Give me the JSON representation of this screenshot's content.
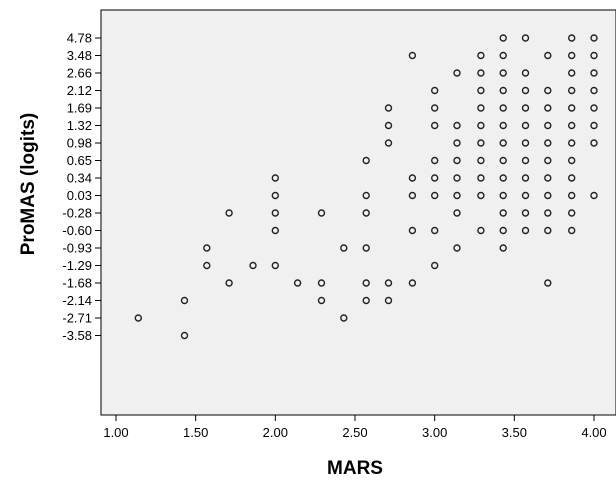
{
  "chart_data": {
    "type": "scatter",
    "xlabel": "MARS",
    "ylabel": "ProMAS (logits)",
    "x_ticks": [
      "1.00",
      "1.50",
      "2.00",
      "2.50",
      "3.00",
      "3.50",
      "4.00"
    ],
    "xlim": [
      0.9,
      4.02
    ],
    "y_tick_labels": [
      "4.78",
      "3.48",
      "2.66",
      "2.12",
      "1.69",
      "1.32",
      "0.98",
      "0.65",
      "0.34",
      "0.03",
      "-0.28",
      "-0.60",
      "-0.93",
      "-1.29",
      "-1.68",
      "-2.14",
      "-2.71",
      "-3.58"
    ],
    "y_scale": "ordinal (one row per listed logit value)",
    "grid": false,
    "background": "#f0f0f0",
    "marker": "hollow circle",
    "points": [
      [
        1.14,
        -2.71
      ],
      [
        1.43,
        -2.14
      ],
      [
        1.43,
        -3.58
      ],
      [
        1.57,
        -0.93
      ],
      [
        1.57,
        -1.29
      ],
      [
        1.71,
        -0.28
      ],
      [
        1.71,
        -1.68
      ],
      [
        1.86,
        -1.29
      ],
      [
        2.0,
        0.34
      ],
      [
        2.0,
        0.03
      ],
      [
        2.0,
        -0.28
      ],
      [
        2.0,
        -0.6
      ],
      [
        2.0,
        -1.29
      ],
      [
        2.14,
        -1.68
      ],
      [
        2.29,
        -0.28
      ],
      [
        2.29,
        -1.68
      ],
      [
        2.29,
        -2.14
      ],
      [
        2.43,
        -0.93
      ],
      [
        2.43,
        -2.71
      ],
      [
        2.57,
        0.65
      ],
      [
        2.57,
        0.03
      ],
      [
        2.57,
        -0.28
      ],
      [
        2.57,
        -0.93
      ],
      [
        2.57,
        -1.68
      ],
      [
        2.57,
        -2.14
      ],
      [
        2.71,
        1.69
      ],
      [
        2.71,
        1.32
      ],
      [
        2.71,
        0.98
      ],
      [
        2.71,
        -1.68
      ],
      [
        2.71,
        -2.14
      ],
      [
        2.86,
        3.48
      ],
      [
        2.86,
        0.34
      ],
      [
        2.86,
        0.03
      ],
      [
        2.86,
        -0.6
      ],
      [
        2.86,
        -1.68
      ],
      [
        3.0,
        2.12
      ],
      [
        3.0,
        1.69
      ],
      [
        3.0,
        1.32
      ],
      [
        3.0,
        0.65
      ],
      [
        3.0,
        0.34
      ],
      [
        3.0,
        0.03
      ],
      [
        3.0,
        -0.6
      ],
      [
        3.0,
        -1.29
      ],
      [
        3.14,
        2.66
      ],
      [
        3.14,
        1.32
      ],
      [
        3.14,
        0.98
      ],
      [
        3.14,
        0.65
      ],
      [
        3.14,
        0.34
      ],
      [
        3.14,
        0.03
      ],
      [
        3.14,
        -0.28
      ],
      [
        3.14,
        -0.93
      ],
      [
        3.29,
        3.48
      ],
      [
        3.29,
        2.66
      ],
      [
        3.29,
        2.12
      ],
      [
        3.29,
        1.69
      ],
      [
        3.29,
        1.32
      ],
      [
        3.29,
        0.98
      ],
      [
        3.29,
        0.65
      ],
      [
        3.29,
        0.34
      ],
      [
        3.29,
        0.03
      ],
      [
        3.29,
        -0.6
      ],
      [
        3.43,
        4.78
      ],
      [
        3.43,
        3.48
      ],
      [
        3.43,
        2.66
      ],
      [
        3.43,
        2.12
      ],
      [
        3.43,
        1.69
      ],
      [
        3.43,
        1.32
      ],
      [
        3.43,
        0.98
      ],
      [
        3.43,
        0.65
      ],
      [
        3.43,
        0.34
      ],
      [
        3.43,
        0.03
      ],
      [
        3.43,
        -0.28
      ],
      [
        3.43,
        -0.6
      ],
      [
        3.43,
        -0.93
      ],
      [
        3.57,
        4.78
      ],
      [
        3.57,
        2.66
      ],
      [
        3.57,
        2.12
      ],
      [
        3.57,
        1.69
      ],
      [
        3.57,
        1.32
      ],
      [
        3.57,
        0.98
      ],
      [
        3.57,
        0.65
      ],
      [
        3.57,
        0.34
      ],
      [
        3.57,
        0.03
      ],
      [
        3.57,
        -0.28
      ],
      [
        3.57,
        -0.6
      ],
      [
        3.71,
        3.48
      ],
      [
        3.71,
        2.12
      ],
      [
        3.71,
        1.69
      ],
      [
        3.71,
        1.32
      ],
      [
        3.71,
        0.98
      ],
      [
        3.71,
        0.65
      ],
      [
        3.71,
        0.34
      ],
      [
        3.71,
        0.03
      ],
      [
        3.71,
        -0.28
      ],
      [
        3.71,
        -0.6
      ],
      [
        3.71,
        -1.68
      ],
      [
        3.86,
        4.78
      ],
      [
        3.86,
        3.48
      ],
      [
        3.86,
        2.66
      ],
      [
        3.86,
        2.12
      ],
      [
        3.86,
        1.69
      ],
      [
        3.86,
        1.32
      ],
      [
        3.86,
        0.98
      ],
      [
        3.86,
        0.65
      ],
      [
        3.86,
        0.34
      ],
      [
        3.86,
        0.03
      ],
      [
        3.86,
        -0.28
      ],
      [
        3.86,
        -0.6
      ],
      [
        4.0,
        4.78
      ],
      [
        4.0,
        3.48
      ],
      [
        4.0,
        2.66
      ],
      [
        4.0,
        2.12
      ],
      [
        4.0,
        1.69
      ],
      [
        4.0,
        1.32
      ],
      [
        4.0,
        0.98
      ],
      [
        4.0,
        0.03
      ]
    ]
  }
}
